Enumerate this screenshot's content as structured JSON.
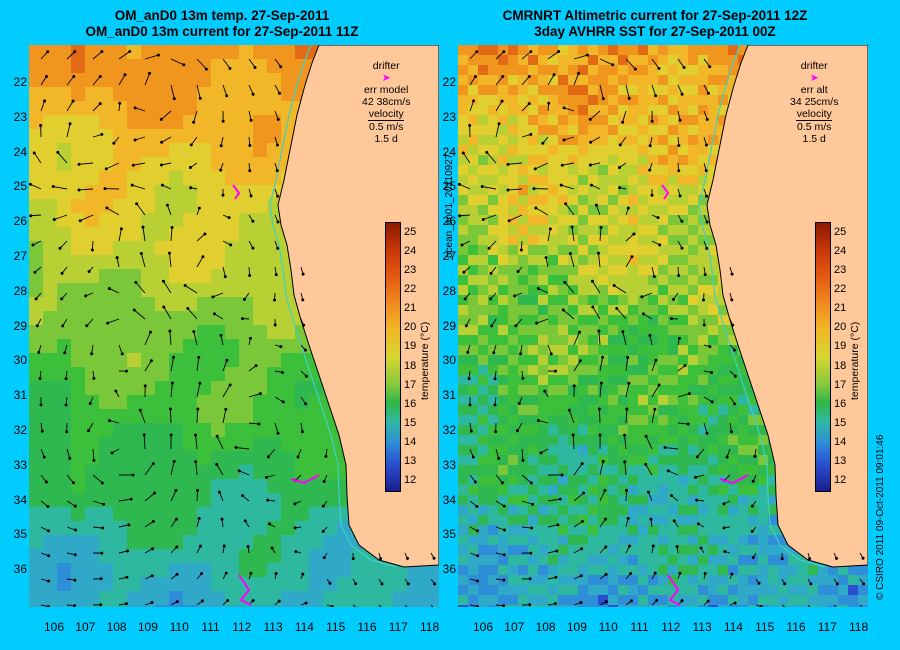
{
  "left_panel": {
    "title_line1": "OM_anD0 13m temp. 27-Sep-2011",
    "title_line2": "OM_anD0 13m current for 27-Sep-2011 11Z",
    "legend": {
      "drifter": "drifter",
      "err_label": "err model",
      "err_value": "42 38cm/s",
      "velocity_label": "velocity",
      "velocity_scale": "0.5 m/s",
      "velocity_days": "1.5 d"
    }
  },
  "right_panel": {
    "title_line1": "CMRNRT Altimetric current for 27-Sep-2011 12Z",
    "title_line2": "3day AVHRR SST for 27-Sep-2011 00Z",
    "legend": {
      "drifter": "drifter",
      "err_label": "err alt",
      "err_value": "34 25cm/s",
      "velocity_label": "velocity",
      "velocity_scale": "0.5 m/s",
      "velocity_days": "1.5 d"
    }
  },
  "latitude_labels": [
    "22",
    "23",
    "24",
    "25",
    "26",
    "27",
    "28",
    "29",
    "30",
    "31",
    "32",
    "33",
    "34",
    "35",
    "36"
  ],
  "longitude_labels": [
    "106",
    "107",
    "108",
    "109",
    "110",
    "111",
    "112",
    "113",
    "114",
    "115",
    "116",
    "117",
    "118"
  ],
  "colorbar": {
    "title": "temperature (°C)",
    "ticks": [
      "25",
      "24",
      "23",
      "22",
      "21",
      "20",
      "19",
      "18",
      "17",
      "16",
      "15",
      "14",
      "13",
      "12"
    ],
    "range": [
      11.5,
      25.5
    ]
  },
  "side_text_mid": "ocean_an01_20110927",
  "side_text_right": "© CSIRO 2011  09-Oct-2011 09:01:46",
  "colors": {
    "background": "#00ccff",
    "land": "#ffc89a",
    "coastline": "#000000",
    "shelf_contour": "#40d0c0",
    "drifter": "#ff00ff"
  }
}
